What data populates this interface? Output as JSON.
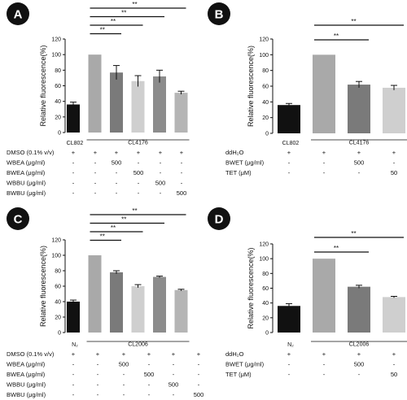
{
  "chart_data": [
    {
      "type": "bar",
      "panel_label": "A",
      "ylabel": "Relative fluorescence(%)",
      "ylim": [
        0,
        120
      ],
      "yticks": [
        "0",
        "20",
        "40",
        "60",
        "80",
        "100",
        "120"
      ],
      "first_label": "CL802",
      "group_label": "CL4176",
      "colors": [
        "#111111",
        "#a9a9a9",
        "#7a7a7a",
        "#cfcfcf",
        "#8c8c8c",
        "#b5b5b5"
      ],
      "values": [
        36,
        100,
        77,
        66,
        72,
        51
      ],
      "errors": [
        3,
        0,
        9,
        7,
        8,
        2
      ],
      "significance": [
        {
          "from": 1,
          "to": 2,
          "text": "**"
        },
        {
          "from": 1,
          "to": 3,
          "text": "**"
        },
        {
          "from": 1,
          "to": 4,
          "text": "**"
        },
        {
          "from": 1,
          "to": 5,
          "text": "**"
        }
      ],
      "rows": [
        {
          "label": "DMSO (0.1% v/v)",
          "cells": [
            "+",
            "+",
            "+",
            "+",
            "+",
            "+"
          ]
        },
        {
          "label": "WBEA (μg/ml)",
          "cells": [
            "-",
            "-",
            "500",
            "-",
            "-",
            "-"
          ]
        },
        {
          "label": "BWEA (μg/ml)",
          "cells": [
            "-",
            "-",
            "-",
            "500",
            "-",
            "-"
          ]
        },
        {
          "label": "WBBU (μg/ml)",
          "cells": [
            "-",
            "-",
            "-",
            "-",
            "500",
            "-"
          ]
        },
        {
          "label": "BWBU (μg/ml)",
          "cells": [
            "-",
            "-",
            "-",
            "-",
            "-",
            "500"
          ]
        }
      ]
    },
    {
      "type": "bar",
      "panel_label": "B",
      "ylabel": "Relative fluorescence(%)",
      "ylim": [
        0,
        120
      ],
      "yticks": [
        "0",
        "20",
        "40",
        "60",
        "80",
        "100",
        "120"
      ],
      "first_label": "CL802",
      "group_label": "CL4176",
      "colors": [
        "#111111",
        "#a9a9a9",
        "#7a7a7a",
        "#cfcfcf"
      ],
      "values": [
        36,
        100,
        62,
        58
      ],
      "errors": [
        2,
        0,
        4,
        3
      ],
      "significance": [
        {
          "from": 1,
          "to": 2,
          "text": "**"
        },
        {
          "from": 1,
          "to": 3,
          "text": "**"
        }
      ],
      "rows": [
        {
          "label": "ddH₂O",
          "cells": [
            "+",
            "+",
            "+",
            "+"
          ]
        },
        {
          "label": "BWET (μg/ml)",
          "cells": [
            "-",
            "-",
            "500",
            "-"
          ]
        },
        {
          "label": "TET (μM)",
          "cells": [
            "-",
            "-",
            "-",
            "50"
          ]
        }
      ]
    },
    {
      "type": "bar",
      "panel_label": "C",
      "ylabel": "Relative fluorescence(%)",
      "ylim": [
        0,
        120
      ],
      "yticks": [
        "0",
        "20",
        "40",
        "60",
        "80",
        "100",
        "120"
      ],
      "first_label": "N₂",
      "group_label": "CL2006",
      "colors": [
        "#111111",
        "#a9a9a9",
        "#7a7a7a",
        "#cfcfcf",
        "#8c8c8c",
        "#b5b5b5"
      ],
      "values": [
        40,
        100,
        78,
        60,
        72,
        55
      ],
      "errors": [
        2,
        0,
        2,
        2,
        1,
        1
      ],
      "significance": [
        {
          "from": 1,
          "to": 2,
          "text": "**"
        },
        {
          "from": 1,
          "to": 3,
          "text": "**"
        },
        {
          "from": 1,
          "to": 4,
          "text": "**"
        },
        {
          "from": 1,
          "to": 5,
          "text": "**"
        }
      ],
      "rows": [
        {
          "label": "DMSO (0.1% v/v)",
          "cells": [
            "+",
            "+",
            "+",
            "+",
            "+",
            "+"
          ]
        },
        {
          "label": "WBEA (μg/ml)",
          "cells": [
            "-",
            "-",
            "500",
            "-",
            "-",
            "-"
          ]
        },
        {
          "label": "BWEA (μg/ml)",
          "cells": [
            "-",
            "-",
            "-",
            "500",
            "-",
            "-"
          ]
        },
        {
          "label": "WBBU (μg/ml)",
          "cells": [
            "-",
            "-",
            "-",
            "-",
            "500",
            "-"
          ]
        },
        {
          "label": "BWBU (μg/ml)",
          "cells": [
            "-",
            "-",
            "-",
            "-",
            "-",
            "500"
          ]
        }
      ]
    },
    {
      "type": "bar",
      "panel_label": "D",
      "ylabel": "Relative fluorescence(%)",
      "ylim": [
        0,
        120
      ],
      "yticks": [
        "0",
        "20",
        "40",
        "60",
        "80",
        "100",
        "120"
      ],
      "first_label": "N₂",
      "group_label": "CL2006",
      "colors": [
        "#111111",
        "#a9a9a9",
        "#7a7a7a",
        "#cfcfcf"
      ],
      "values": [
        36,
        100,
        62,
        48
      ],
      "errors": [
        3,
        0,
        2,
        1
      ],
      "significance": [
        {
          "from": 1,
          "to": 2,
          "text": "**"
        },
        {
          "from": 1,
          "to": 3,
          "text": "**"
        }
      ],
      "rows": [
        {
          "label": "ddH₂O",
          "cells": [
            "+",
            "+",
            "+",
            "+"
          ]
        },
        {
          "label": "BWET (μg/ml)",
          "cells": [
            "-",
            "-",
            "500",
            "-"
          ]
        },
        {
          "label": "TET (μM)",
          "cells": [
            "-",
            "-",
            "-",
            "50"
          ]
        }
      ]
    }
  ]
}
